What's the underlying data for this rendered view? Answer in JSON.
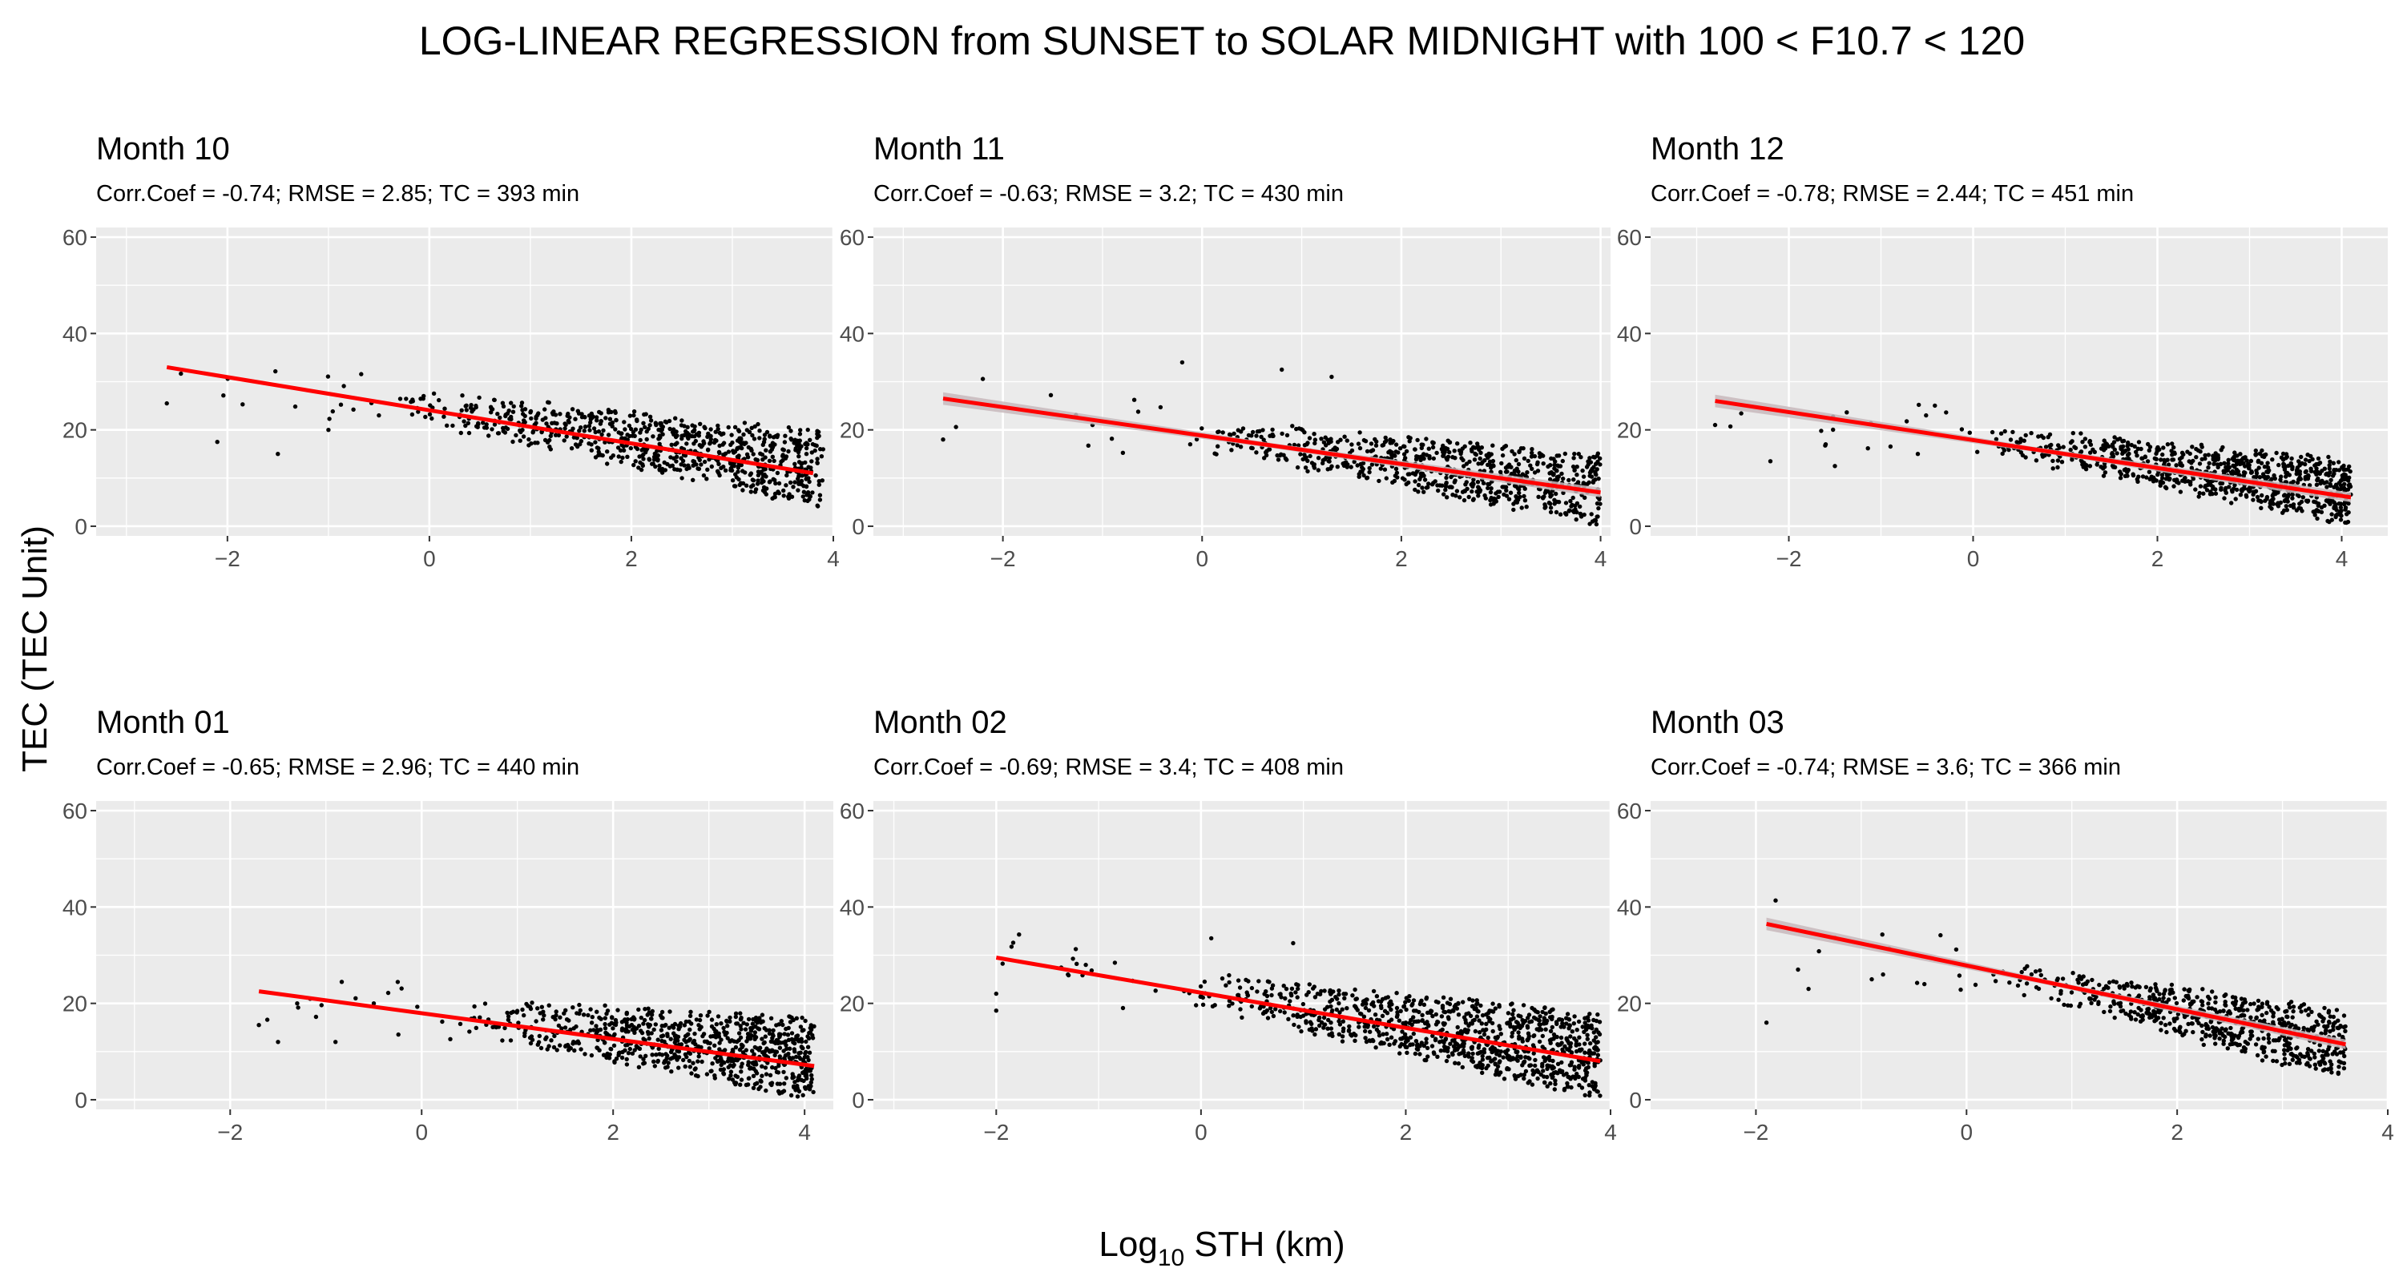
{
  "figure": {
    "title": "LOG-LINEAR REGRESSION from SUNSET to SOLAR MIDNIGHT with 100 < F10.7 < 120",
    "xlabel_base": "Log",
    "xlabel_sub": "10",
    "xlabel_rest": " STH (km)",
    "ylabel": "TEC (TEC Unit)"
  },
  "colors": {
    "panel_bg": "#ebebeb",
    "grid": "#ffffff",
    "points": "#000000",
    "fit_line": "#ff0000",
    "ribbon": "#c8b8bc",
    "tick_text": "#4d4d4d"
  },
  "chart_data": [
    {
      "type": "scatter",
      "title": "Month 10",
      "subtitle": "Corr.Coef = -0.74; RMSE = 2.85; TC = 393 min",
      "xlim": [
        -3.3,
        4.0
      ],
      "ylim": [
        -2,
        62
      ],
      "x_ticks": [
        -2,
        0,
        2,
        4
      ],
      "y_ticks": [
        0,
        20,
        40,
        60
      ],
      "fit": {
        "x": [
          -2.6,
          3.8
        ],
        "y": [
          33,
          11
        ]
      },
      "ribbon": false,
      "cloud": {
        "xmin": -2.6,
        "xmax": 3.9,
        "sparse_end": -0.3,
        "n_sparse": 14,
        "n_dense": 760,
        "spread_lo": -6,
        "spread_hi": 8
      },
      "outliers": [
        {
          "x": -2.6,
          "y": 25.5
        },
        {
          "x": -2.1,
          "y": 17.5
        },
        {
          "x": -1.5,
          "y": 15
        },
        {
          "x": -1.0,
          "y": 20
        },
        {
          "x": -0.5,
          "y": 23
        }
      ]
    },
    {
      "type": "scatter",
      "title": "Month 11",
      "subtitle": "Corr.Coef = -0.63; RMSE = 3.2; TC = 430 min",
      "xlim": [
        -3.3,
        4.1
      ],
      "ylim": [
        -2,
        62
      ],
      "x_ticks": [
        -2,
        0,
        2,
        4
      ],
      "y_ticks": [
        0,
        20,
        40,
        60
      ],
      "fit": {
        "x": [
          -2.6,
          4.0
        ],
        "y": [
          26.5,
          7
        ]
      },
      "ribbon": true,
      "cloud": {
        "xmin": -2.6,
        "xmax": 4.0,
        "sparse_end": -0.2,
        "n_sparse": 10,
        "n_dense": 700,
        "spread_lo": -6,
        "spread_hi": 7
      },
      "outliers": [
        {
          "x": -2.6,
          "y": 18
        },
        {
          "x": -0.2,
          "y": 34
        },
        {
          "x": 0.8,
          "y": 32.5
        },
        {
          "x": 1.3,
          "y": 31
        },
        {
          "x": -1.1,
          "y": 21
        }
      ]
    },
    {
      "type": "scatter",
      "title": "Month 12",
      "subtitle": "Corr.Coef = -0.78; RMSE = 2.44; TC = 451 min",
      "xlim": [
        -3.5,
        4.5
      ],
      "ylim": [
        -2,
        62
      ],
      "x_ticks": [
        -2,
        0,
        2,
        4
      ],
      "y_ticks": [
        0,
        20,
        40,
        60
      ],
      "fit": {
        "x": [
          -2.8,
          4.1
        ],
        "y": [
          26,
          6
        ]
      },
      "ribbon": true,
      "cloud": {
        "xmin": -2.8,
        "xmax": 4.1,
        "sparse_end": 0.1,
        "n_sparse": 18,
        "n_dense": 820,
        "spread_lo": -5,
        "spread_hi": 7
      },
      "outliers": [
        {
          "x": -2.8,
          "y": 21
        },
        {
          "x": -2.2,
          "y": 13.5
        },
        {
          "x": -1.6,
          "y": 17
        },
        {
          "x": -1.5,
          "y": 12.5
        },
        {
          "x": -0.6,
          "y": 15
        }
      ]
    },
    {
      "type": "scatter",
      "title": "Month 01",
      "subtitle": "Corr.Coef = -0.65; RMSE = 2.96; TC = 440 min",
      "xlim": [
        -3.4,
        4.3
      ],
      "ylim": [
        -2,
        62
      ],
      "x_ticks": [
        -2,
        0,
        2,
        4
      ],
      "y_ticks": [
        0,
        20,
        40,
        60
      ],
      "fit": {
        "x": [
          -1.7,
          4.1
        ],
        "y": [
          22.5,
          7
        ]
      },
      "ribbon": false,
      "cloud": {
        "xmin": -1.7,
        "xmax": 4.1,
        "sparse_end": 0.3,
        "n_sparse": 14,
        "n_dense": 780,
        "spread_lo": -6,
        "spread_hi": 9
      },
      "outliers": [
        {
          "x": -1.7,
          "y": 15.5
        },
        {
          "x": -1.5,
          "y": 12
        },
        {
          "x": -1.3,
          "y": 20
        },
        {
          "x": -0.9,
          "y": 12
        },
        {
          "x": -0.5,
          "y": 20
        }
      ]
    },
    {
      "type": "scatter",
      "title": "Month 02",
      "subtitle": "Corr.Coef = -0.69; RMSE = 3.4; TC = 408 min",
      "xlim": [
        -3.2,
        4.0
      ],
      "ylim": [
        -2,
        62
      ],
      "x_ticks": [
        -2,
        0,
        2,
        4
      ],
      "y_ticks": [
        0,
        20,
        40,
        60
      ],
      "fit": {
        "x": [
          -2.0,
          3.9
        ],
        "y": [
          29.5,
          8
        ]
      },
      "ribbon": false,
      "cloud": {
        "xmin": -2.0,
        "xmax": 3.9,
        "sparse_end": -0.2,
        "n_sparse": 16,
        "n_dense": 950,
        "spread_lo": -7,
        "spread_hi": 9
      },
      "outliers": [
        {
          "x": -2.0,
          "y": 18.5
        },
        {
          "x": -2.0,
          "y": 22
        },
        {
          "x": 0.1,
          "y": 33.5
        },
        {
          "x": 0.9,
          "y": 32.5
        },
        {
          "x": -1.3,
          "y": 26
        }
      ]
    },
    {
      "type": "scatter",
      "title": "Month 03",
      "subtitle": "Corr.Coef = -0.74; RMSE = 3.6; TC = 366 min",
      "xlim": [
        -3.0,
        4.0
      ],
      "ylim": [
        -2,
        62
      ],
      "x_ticks": [
        -2,
        0,
        2,
        4
      ],
      "y_ticks": [
        0,
        20,
        40,
        60
      ],
      "fit": {
        "x": [
          -1.9,
          3.6
        ],
        "y": [
          36.5,
          11.5
        ]
      },
      "ribbon": true,
      "cloud": {
        "xmin": -1.9,
        "xmax": 3.6,
        "sparse_end": 0.3,
        "n_sparse": 14,
        "n_dense": 640,
        "spread_lo": -7,
        "spread_hi": 6
      },
      "outliers": [
        {
          "x": -1.9,
          "y": 16
        },
        {
          "x": -1.6,
          "y": 27
        },
        {
          "x": -1.5,
          "y": 23
        },
        {
          "x": -0.9,
          "y": 25
        },
        {
          "x": -0.4,
          "y": 24
        }
      ]
    }
  ]
}
